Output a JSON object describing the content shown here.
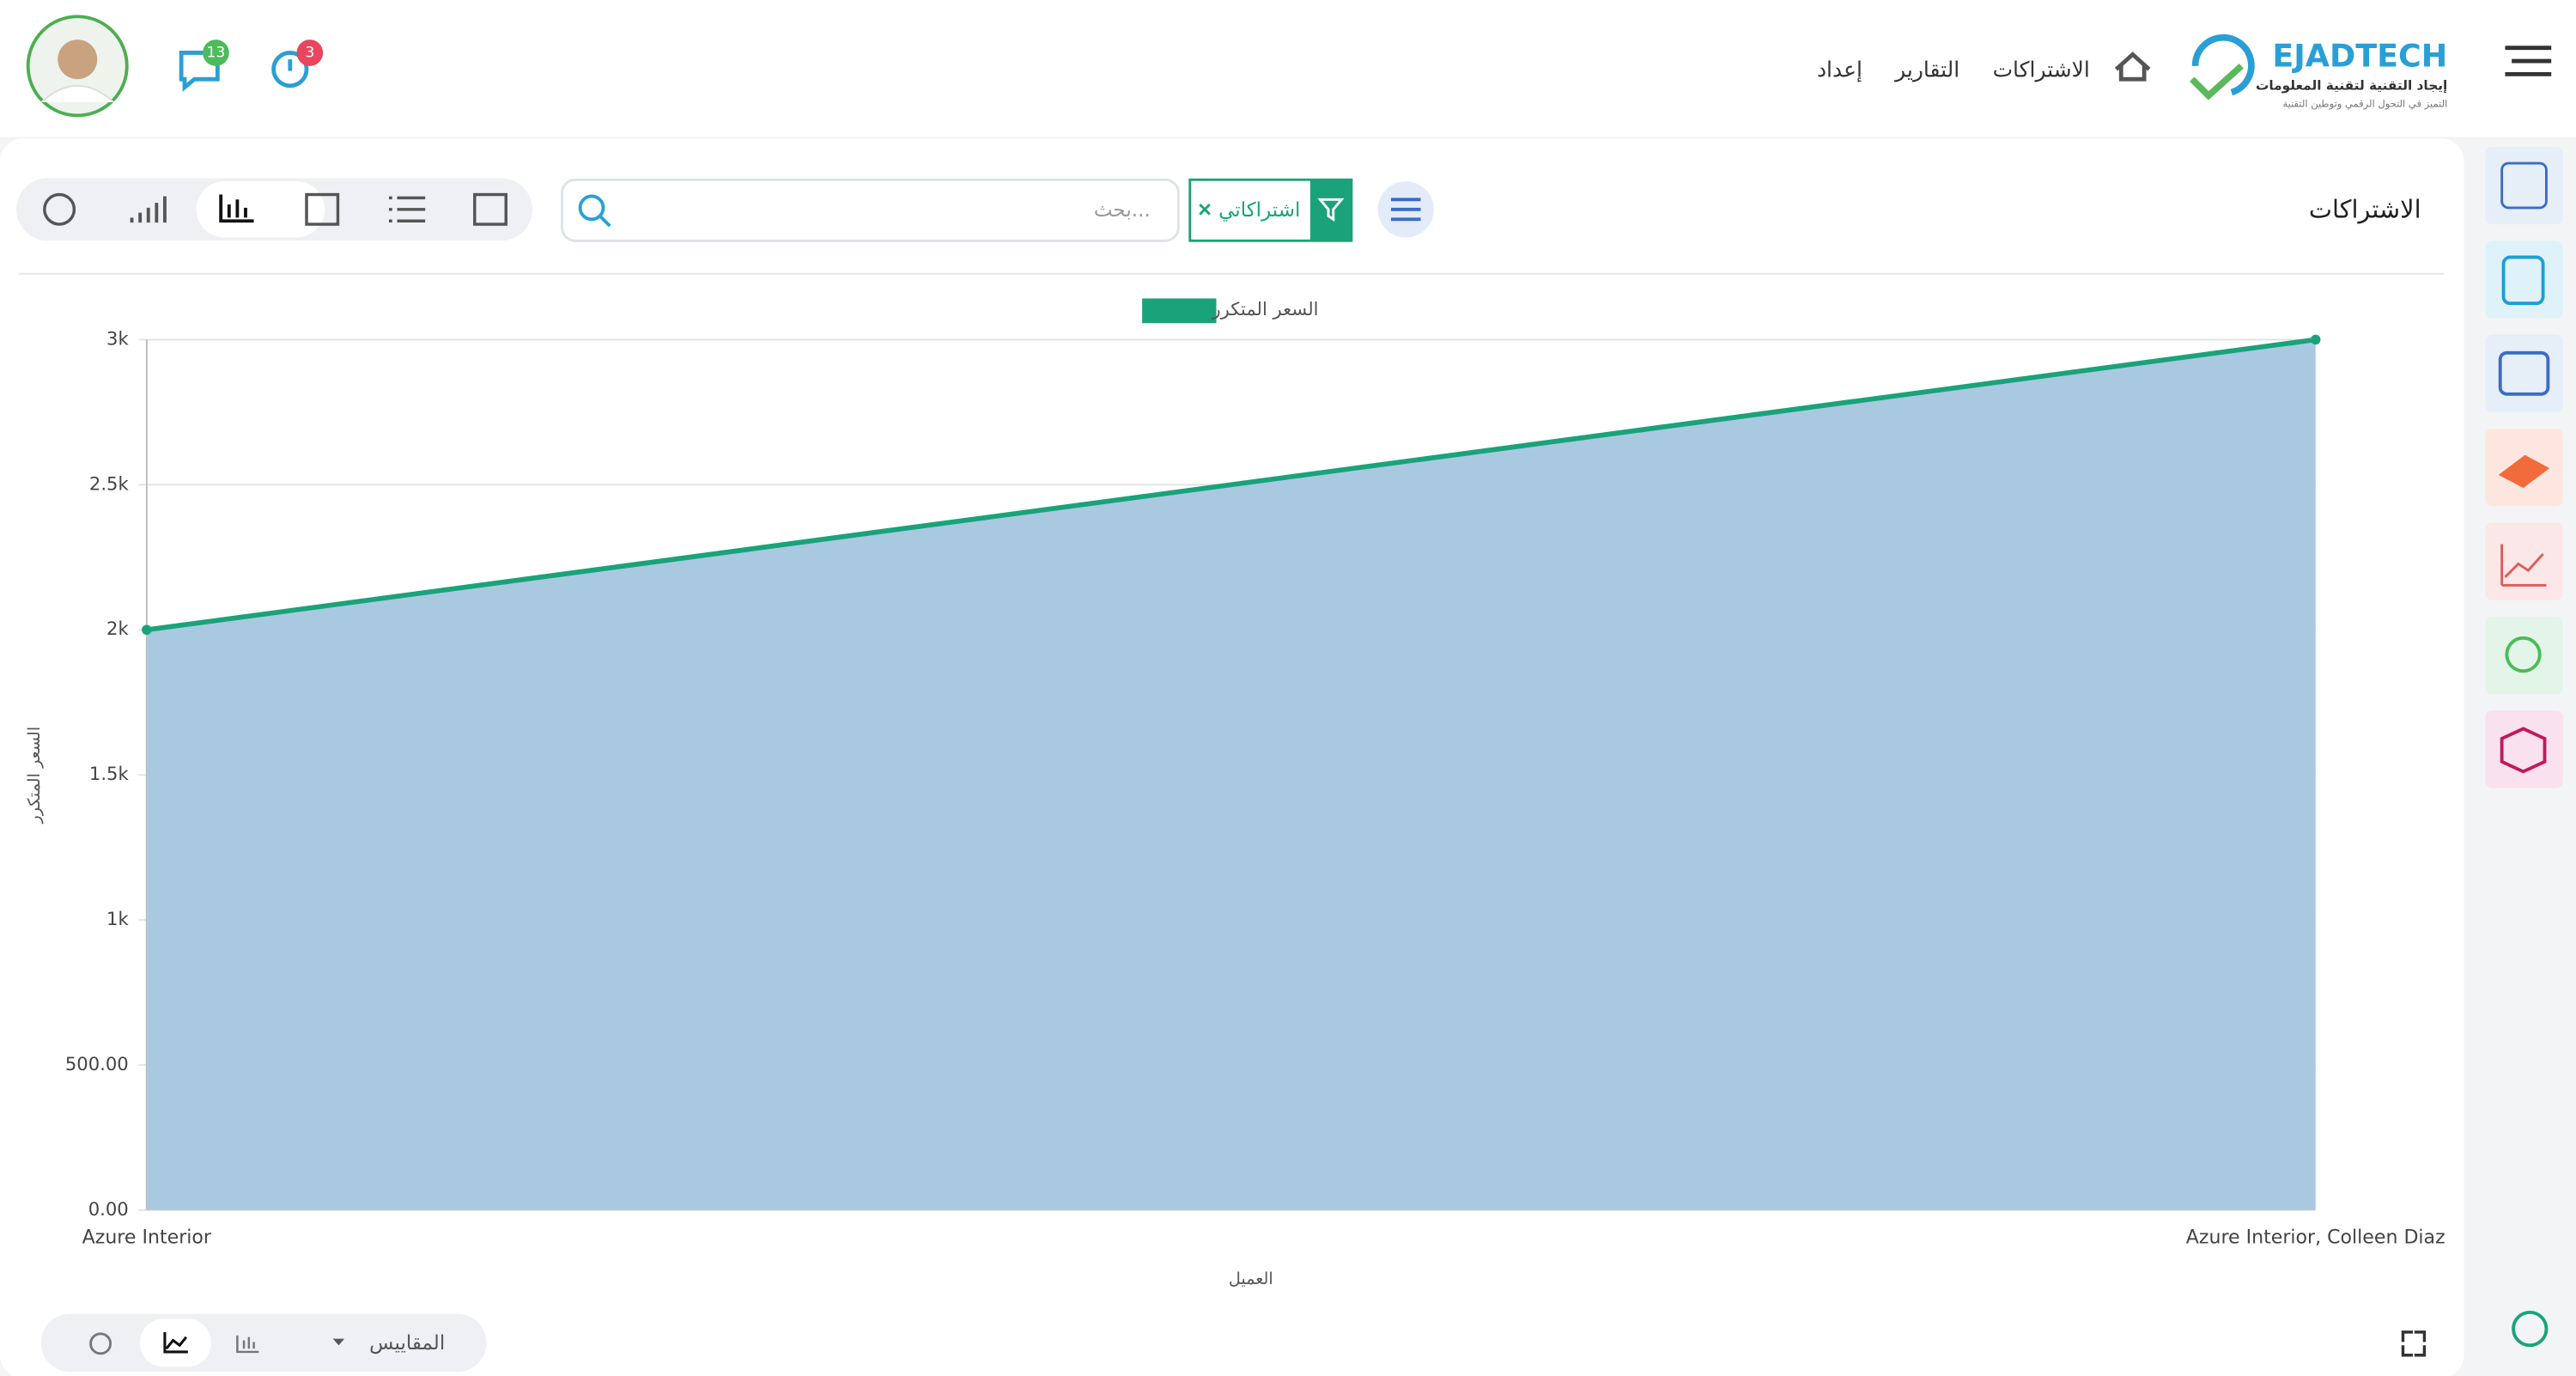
{
  "header": {
    "logo_title": "EJADTECH",
    "logo_subtitle": "إيجاد التقنية لتقنية المعلومات",
    "logo_tagline": "التميز في التحول الرقمي وتوطين التقنية",
    "nav": [
      "الاشتراكات",
      "التقارير",
      "إعداد"
    ],
    "messages_count": 13,
    "alerts_count": 3
  },
  "page": {
    "title": "الاشتراكات",
    "filter": "اشتراكاتي",
    "search_placeholder": "بحث...",
    "measures": "المقاييس"
  },
  "chart_data": {
    "type": "area",
    "categories": [
      "Azure Interior",
      "Azure Interior, Colleen Diaz"
    ],
    "series": [
      {
        "name": "السعر المتكرر",
        "color": "#1aa37a",
        "fill": "#a7c8e0",
        "values": [
          2000,
          3000
        ]
      }
    ],
    "x_label": "العميل",
    "y_label": "السعر المتكرر",
    "ylim": [
      0,
      3000
    ],
    "yticks": [
      {
        "value": 0,
        "label": "0.00"
      },
      {
        "value": 500,
        "label": "500.00"
      },
      {
        "value": 1000,
        "label": "1k"
      },
      {
        "value": 1500,
        "label": "1.5k"
      },
      {
        "value": 2000,
        "label": "2k"
      },
      {
        "value": 2500,
        "label": "2.5k"
      },
      {
        "value": 3000,
        "label": "3k"
      }
    ],
    "grid": true
  }
}
